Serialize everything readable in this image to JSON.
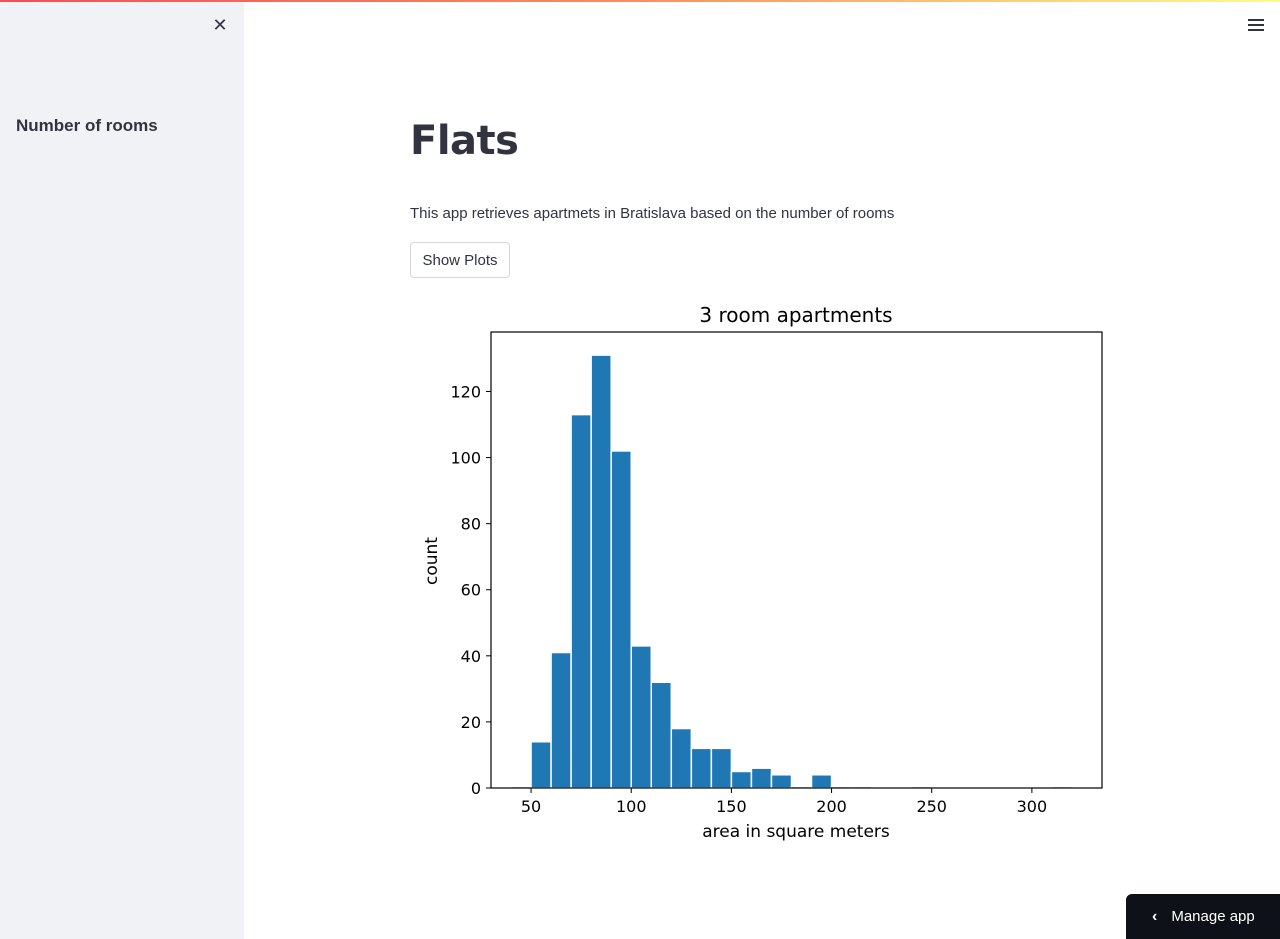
{
  "sidebar": {
    "close_icon": "close-icon",
    "heading": "Number of rooms"
  },
  "header": {
    "menu_icon": "hamburger-menu-icon"
  },
  "main": {
    "title": "Flats",
    "description": "This app retrieves apartmets in Bratislava based on the number of rooms",
    "button_label": "Show Plots"
  },
  "footer": {
    "manage_label": "Manage app",
    "manage_icon": "chevron-left-icon"
  },
  "colors": {
    "bar": "#1f77b4",
    "sidebar_bg": "#f0f2f6",
    "text": "#31333f"
  },
  "chart_data": {
    "type": "bar",
    "title": "3 room apartments",
    "xlabel": "area in square meters",
    "ylabel": "count",
    "xlim": [
      30,
      335
    ],
    "ylim": [
      0,
      138
    ],
    "xticks": [
      50,
      100,
      150,
      200,
      250,
      300
    ],
    "yticks": [
      0,
      20,
      40,
      60,
      80,
      100,
      120
    ],
    "bins": [
      {
        "x0": 40,
        "x1": 50,
        "count": 0.5
      },
      {
        "x0": 50,
        "x1": 60,
        "count": 14
      },
      {
        "x0": 60,
        "x1": 70,
        "count": 41
      },
      {
        "x0": 70,
        "x1": 80,
        "count": 113
      },
      {
        "x0": 80,
        "x1": 90,
        "count": 131
      },
      {
        "x0": 90,
        "x1": 100,
        "count": 102
      },
      {
        "x0": 100,
        "x1": 110,
        "count": 43
      },
      {
        "x0": 110,
        "x1": 120,
        "count": 32
      },
      {
        "x0": 120,
        "x1": 130,
        "count": 18
      },
      {
        "x0": 130,
        "x1": 140,
        "count": 12
      },
      {
        "x0": 140,
        "x1": 150,
        "count": 12
      },
      {
        "x0": 150,
        "x1": 160,
        "count": 5
      },
      {
        "x0": 160,
        "x1": 170,
        "count": 6
      },
      {
        "x0": 170,
        "x1": 180,
        "count": 4
      },
      {
        "x0": 180,
        "x1": 190,
        "count": 0.5
      },
      {
        "x0": 190,
        "x1": 200,
        "count": 4
      },
      {
        "x0": 200,
        "x1": 210,
        "count": 0.5
      },
      {
        "x0": 210,
        "x1": 220,
        "count": 0.5
      },
      {
        "x0": 240,
        "x1": 250,
        "count": 0.5
      },
      {
        "x0": 310,
        "x1": 320,
        "count": 0.5
      }
    ]
  }
}
